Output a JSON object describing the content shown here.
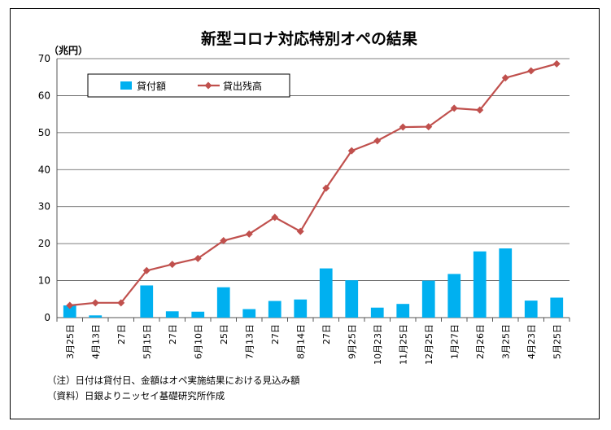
{
  "chart_data": {
    "type": "bar+line",
    "title": "新型コロナ対応特別オペの結果",
    "unit_label": "（兆円）",
    "ylim": [
      0,
      70
    ],
    "yticks": [
      0,
      10,
      20,
      30,
      40,
      50,
      60,
      70
    ],
    "grid": true,
    "legend_position": "top-left",
    "categories": [
      "3月25日",
      "4月13日",
      "27日",
      "5月15日",
      "27日",
      "6月10日",
      "25日",
      "7月13日",
      "27日",
      "8月14日",
      "27日",
      "9月25日",
      "10月23日",
      "11月25日",
      "12月25日",
      "1月27日",
      "2月26日",
      "3月25日",
      "4月23日",
      "5月25日"
    ],
    "series": [
      {
        "name": "貸付額",
        "kind": "bar",
        "color": "#00b0f0",
        "values": [
          3.3,
          0.6,
          0,
          8.7,
          1.7,
          1.6,
          8.2,
          2.3,
          4.5,
          4.9,
          13.3,
          10.1,
          2.7,
          3.7,
          10.0,
          11.8,
          17.9,
          18.7,
          4.6,
          5.4
        ]
      },
      {
        "name": "貸出残高",
        "kind": "line",
        "color": "#c0504d",
        "values": [
          3.3,
          4.0,
          4.0,
          12.7,
          14.4,
          16.0,
          20.8,
          22.6,
          27.1,
          23.3,
          35.0,
          45.1,
          47.8,
          51.5,
          51.6,
          56.6,
          56.1,
          64.8,
          66.7,
          68.6
        ]
      }
    ]
  },
  "notes": {
    "note1": "（注）日付は貸付日、金額はオペ実施結果における見込み額",
    "note2": "（資料）日銀よりニッセイ基礎研究所作成"
  }
}
